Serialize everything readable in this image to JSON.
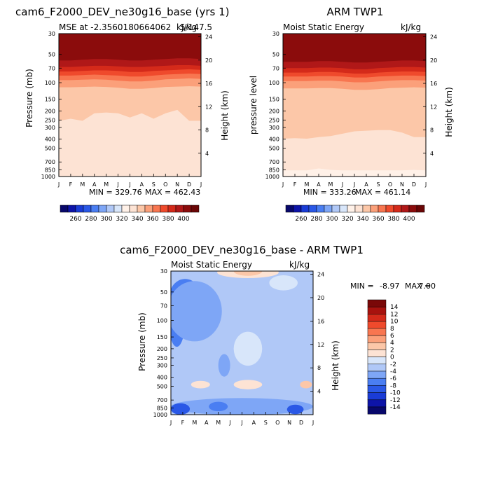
{
  "months": [
    "J",
    "F",
    "M",
    "A",
    "M",
    "J",
    "J",
    "A",
    "S",
    "O",
    "N",
    "D",
    "J"
  ],
  "pressure_ticks": [
    "30",
    "50",
    "70",
    "100",
    "150",
    "200",
    "250",
    "300",
    "400",
    "500",
    "700",
    "850",
    "1000"
  ],
  "pressure_values": [
    30,
    50,
    70,
    100,
    150,
    200,
    250,
    300,
    400,
    500,
    700,
    850,
    1000
  ],
  "height_ticks": [
    "24",
    "20",
    "16",
    "12",
    "8",
    "4"
  ],
  "height_values": [
    24,
    20,
    16,
    12,
    8,
    4
  ],
  "chart_data": [
    {
      "type": "heatmap",
      "title": "cam6_F2000_DEV_ne30g16_base (yrs 1)",
      "subtitle_left": "MSE at -2.3560180664062",
      "subtitle_right": "5/147.5",
      "subtitle_unit": "kJ/kg",
      "ylabel": "Pressure (mb)",
      "ylabel_right": "Height (km)",
      "min_label": "MIN = 329.76",
      "max_label": "MAX = 462.43",
      "x_months": 13,
      "boundaries": [
        {
          "level": 400,
          "p": [
            58,
            58,
            57,
            56,
            56,
            57,
            58,
            58,
            57,
            56,
            55,
            55,
            56
          ]
        },
        {
          "level": 390,
          "p": [
            68,
            68,
            67,
            66,
            66,
            67,
            68,
            68,
            67,
            66,
            65,
            65,
            66
          ]
        },
        {
          "level": 380,
          "p": [
            76,
            76,
            75,
            74,
            74,
            75,
            77,
            77,
            75,
            74,
            73,
            72,
            73
          ]
        },
        {
          "level": 370,
          "p": [
            84,
            84,
            83,
            82,
            83,
            84,
            86,
            86,
            84,
            82,
            81,
            80,
            81
          ]
        },
        {
          "level": 360,
          "p": [
            94,
            94,
            93,
            92,
            93,
            95,
            97,
            97,
            95,
            92,
            91,
            90,
            91
          ]
        },
        {
          "level": 350,
          "p": [
            112,
            112,
            111,
            110,
            111,
            113,
            116,
            116,
            114,
            111,
            110,
            109,
            110
          ]
        },
        {
          "level": 340,
          "p": [
            255,
            242,
            255,
            212,
            208,
            212,
            235,
            212,
            242,
            212,
            195,
            255,
            255
          ]
        },
        {
          "level": 330,
          "p": [
            990,
            990,
            990,
            985,
            985,
            990,
            990,
            985,
            990,
            990,
            990,
            990,
            990
          ]
        }
      ],
      "colorbar_labels": [
        "260",
        "280",
        "300",
        "320",
        "340",
        "360",
        "380",
        "400"
      ]
    },
    {
      "type": "heatmap",
      "title": "ARM TWP1",
      "subtitle_left": "Moist Static Energy",
      "subtitle_unit": "kJ/kg",
      "ylabel": "pressure level",
      "ylabel_right": "Height (km)",
      "min_label": "MIN = 333.26",
      "max_label": "MAX = 461.14",
      "x_months": 13,
      "boundaries": [
        {
          "level": 400,
          "p": [
            60,
            60,
            60,
            59,
            59,
            60,
            61,
            61,
            60,
            59,
            58,
            58,
            59
          ]
        },
        {
          "level": 390,
          "p": [
            70,
            70,
            70,
            69,
            69,
            70,
            72,
            72,
            70,
            69,
            68,
            68,
            69
          ]
        },
        {
          "level": 380,
          "p": [
            78,
            78,
            78,
            77,
            77,
            78,
            80,
            80,
            78,
            77,
            76,
            76,
            77
          ]
        },
        {
          "level": 370,
          "p": [
            86,
            86,
            86,
            85,
            85,
            86,
            88,
            88,
            86,
            85,
            84,
            84,
            85
          ]
        },
        {
          "level": 360,
          "p": [
            96,
            96,
            96,
            95,
            95,
            97,
            99,
            99,
            97,
            95,
            94,
            94,
            95
          ]
        },
        {
          "level": 350,
          "p": [
            115,
            115,
            115,
            114,
            114,
            116,
            119,
            119,
            117,
            114,
            113,
            112,
            113
          ]
        },
        {
          "level": 340,
          "p": [
            395,
            390,
            395,
            380,
            370,
            350,
            330,
            325,
            320,
            320,
            340,
            380,
            380
          ]
        },
        {
          "level": 330,
          "p": [
            860,
            860,
            860,
            820,
            850,
            860,
            860,
            860,
            860,
            860,
            860,
            850,
            860
          ]
        }
      ],
      "colorbar_labels": [
        "260",
        "280",
        "300",
        "320",
        "340",
        "360",
        "380",
        "400"
      ]
    },
    {
      "type": "heatmap",
      "title": "cam6_F2000_DEV_ne30g16_base - ARM TWP1",
      "subtitle_left": "Moist Static Energy",
      "subtitle_unit": "kJ/kg",
      "ylabel": "Pressure (mb)",
      "ylabel_right": "Height (km)",
      "min_label": "MIN =",
      "min_value": "-8.97",
      "max_label": "MAX =",
      "max_value": "7.00",
      "x_months": 13,
      "colorbar_labels": [
        "14",
        "12",
        "10",
        "8",
        "6",
        "4",
        "2",
        "0",
        "-2",
        "-4",
        "-6",
        "-8",
        "-10",
        "-12",
        "-14"
      ],
      "blobs": [
        {
          "month": 0.5,
          "p": 100,
          "rx": 0.7,
          "rp_log": 0.28,
          "level": -6
        },
        {
          "month": 1.2,
          "p": 55,
          "rx": 1.3,
          "rp_log": 0.18,
          "level": -6
        },
        {
          "month": 2.0,
          "p": 80,
          "rx": 2.3,
          "rp_log": 0.32,
          "level": -4
        },
        {
          "month": 6.5,
          "p": 31,
          "rx": 2.6,
          "rp_log": 0.06,
          "level": 2
        },
        {
          "month": 6.5,
          "p": 30,
          "rx": 1.2,
          "rp_log": 0.05,
          "level": 4
        },
        {
          "month": 9.5,
          "p": 40,
          "rx": 1.2,
          "rp_log": 0.08,
          "level": 0
        },
        {
          "month": 6.5,
          "p": 200,
          "rx": 1.2,
          "rp_log": 0.18,
          "level": 0
        },
        {
          "month": 6.5,
          "p": 480,
          "rx": 1.2,
          "rp_log": 0.05,
          "level": 2
        },
        {
          "month": 2.5,
          "p": 480,
          "rx": 0.8,
          "rp_log": 0.04,
          "level": 2
        },
        {
          "month": 11.4,
          "p": 480,
          "rx": 0.5,
          "rp_log": 0.04,
          "level": 4
        },
        {
          "month": 6.0,
          "p": 820,
          "rx": 6.0,
          "rp_log": 0.09,
          "level": -4
        },
        {
          "month": 0.8,
          "p": 870,
          "rx": 0.8,
          "rp_log": 0.06,
          "level": -8
        },
        {
          "month": 4.0,
          "p": 820,
          "rx": 0.8,
          "rp_log": 0.05,
          "level": -6
        },
        {
          "month": 10.5,
          "p": 880,
          "rx": 0.7,
          "rp_log": 0.05,
          "level": -8
        },
        {
          "month": 4.5,
          "p": 300,
          "rx": 0.5,
          "rp_log": 0.12,
          "level": -4
        }
      ]
    }
  ]
}
